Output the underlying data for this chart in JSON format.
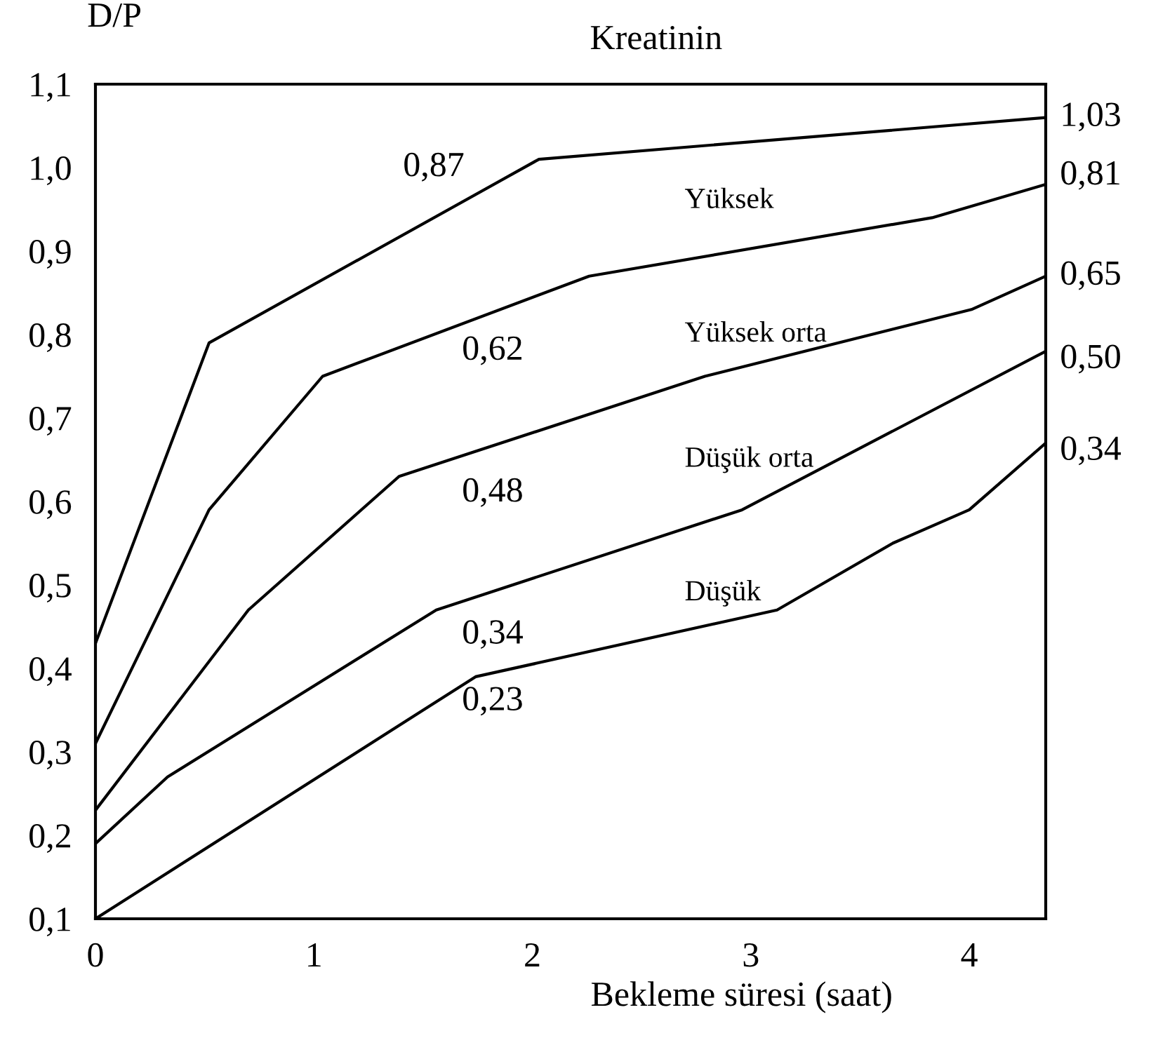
{
  "chart_data": {
    "type": "line",
    "title": "Kreatinin",
    "ylabel": "D/P",
    "xlabel": "Bekleme süresi (saat)",
    "xlim": [
      0,
      4.35
    ],
    "xticks": [
      0,
      1,
      2,
      3,
      4
    ],
    "ylim": [
      0.1,
      1.1
    ],
    "yticks": [
      {
        "value": 0.1,
        "label": "0,1"
      },
      {
        "value": 0.2,
        "label": "0,2"
      },
      {
        "value": 0.3,
        "label": "0,3"
      },
      {
        "value": 0.4,
        "label": "0,4"
      },
      {
        "value": 0.5,
        "label": "0,5"
      },
      {
        "value": 0.6,
        "label": "0,6"
      },
      {
        "value": 0.7,
        "label": "0,7"
      },
      {
        "value": 0.8,
        "label": "0,8"
      },
      {
        "value": 0.9,
        "label": "0,9"
      },
      {
        "value": 1.0,
        "label": "1,0"
      },
      {
        "value": 1.1,
        "label": "1,1"
      }
    ],
    "grid": false,
    "series": [
      {
        "color": "#000000",
        "x": [
          0,
          0.52,
          2.03,
          4.35
        ],
        "values": [
          0.43,
          0.79,
          1.01,
          1.06
        ]
      },
      {
        "color": "#000000",
        "x": [
          0,
          0.52,
          1.04,
          2.26,
          3.83,
          4.35
        ],
        "values": [
          0.31,
          0.59,
          0.75,
          0.87,
          0.94,
          0.98
        ]
      },
      {
        "color": "#000000",
        "x": [
          0,
          0.7,
          1.39,
          2.79,
          4.01,
          4.35
        ],
        "values": [
          0.23,
          0.47,
          0.63,
          0.75,
          0.83,
          0.87
        ]
      },
      {
        "color": "#000000",
        "x": [
          0,
          0.33,
          1.56,
          2.96,
          4.35
        ],
        "values": [
          0.19,
          0.27,
          0.47,
          0.59,
          0.78
        ]
      },
      {
        "color": "#000000",
        "x": [
          0,
          1.74,
          3.12,
          3.65,
          4.0,
          4.35
        ],
        "values": [
          0.1,
          0.39,
          0.47,
          0.55,
          0.59,
          0.67
        ]
      }
    ],
    "annotations": [
      "0,87",
      "0,62",
      "0,48",
      "0,34",
      "0,23",
      "Yüksek",
      "Yüksek orta",
      "Düşük orta",
      "Düşük",
      "1,03",
      "0,81",
      "0,65",
      "0,50",
      "0,34"
    ]
  }
}
